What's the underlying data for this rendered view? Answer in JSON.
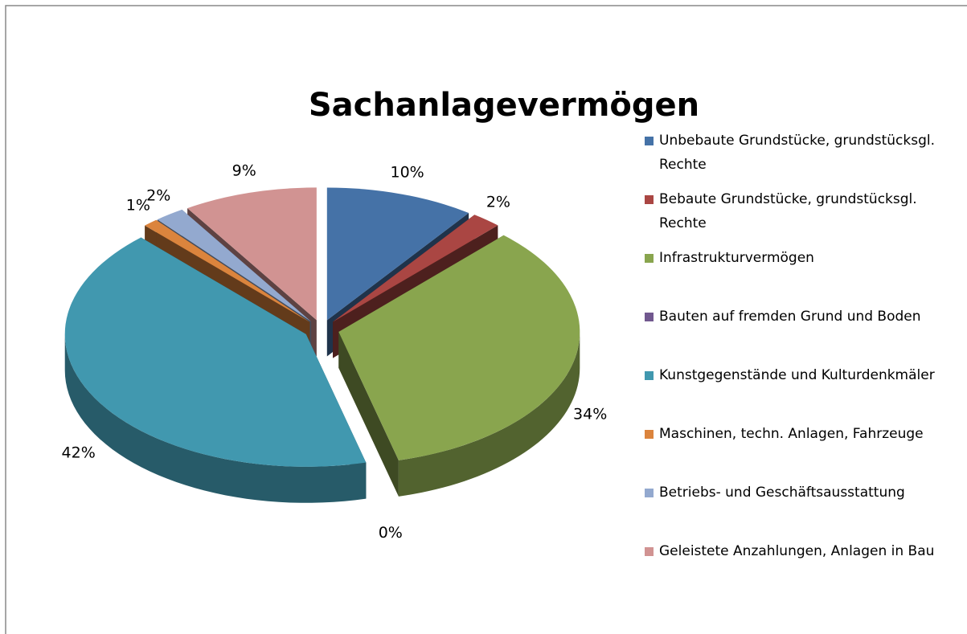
{
  "chart_data": {
    "type": "pie",
    "title": "Sachanlagevermögen",
    "categories": [
      "Unbebaute Grundstücke, grundstücksgl. Rechte",
      "Bebaute Grundstücke, grundstücksgl. Rechte",
      "Infrastrukturvermögen",
      "Bauten auf fremden Grund und Boden",
      "Kunstgegenstände und Kulturdenkmäler",
      "Maschinen, techn. Anlagen, Fahrzeuge",
      "Betriebs- und Geschäftsausstattung",
      "Geleistete Anzahlungen, Anlagen in Bau"
    ],
    "values": [
      10,
      2,
      34,
      0,
      42,
      1,
      2,
      9
    ],
    "value_labels": [
      "10%",
      "2%",
      "34%",
      "0%",
      "42%",
      "1%",
      "2%",
      "9%"
    ],
    "colors": [
      "#4572a7",
      "#aa4643",
      "#89a54e",
      "#71588f",
      "#4198af",
      "#db843d",
      "#93a9cf",
      "#d19392"
    ],
    "legend": "right"
  }
}
